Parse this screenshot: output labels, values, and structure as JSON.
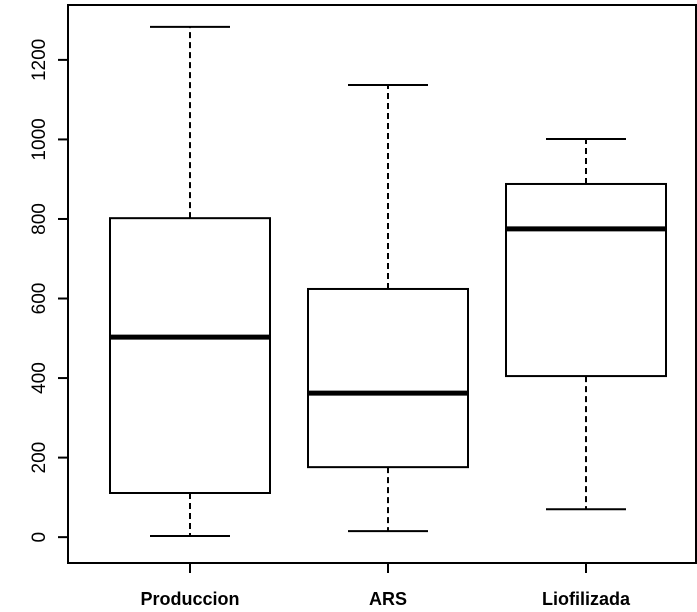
{
  "chart_data": {
    "type": "box",
    "categories": [
      "Produccion",
      "ARS",
      "Liofilizada"
    ],
    "min": [
      3,
      15,
      70
    ],
    "q1": [
      111,
      176,
      405
    ],
    "median": [
      503,
      362,
      775
    ],
    "q3": [
      802,
      624,
      888
    ],
    "max": [
      1283,
      1137,
      1001
    ],
    "ylim": [
      -65,
      1338
    ],
    "yticks": [
      0,
      200,
      400,
      600,
      800,
      1000,
      1200
    ]
  }
}
